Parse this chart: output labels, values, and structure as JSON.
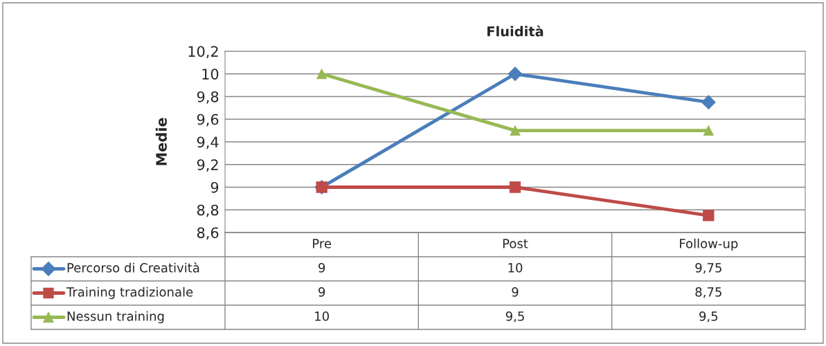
{
  "chart_data": {
    "type": "line",
    "title": "Fluidità",
    "ylabel": "Medie",
    "categories": [
      "Pre",
      "Post",
      "Follow-up"
    ],
    "series": [
      {
        "name": "Percorso di Creatività",
        "color": "#4a7ebb",
        "marker": "diamond",
        "values": [
          9,
          10,
          9.75
        ],
        "value_labels": [
          "9",
          "10",
          "9,75"
        ]
      },
      {
        "name": "Training tradizionale",
        "color": "#be4b48",
        "marker": "square",
        "values": [
          9,
          9,
          8.75
        ],
        "value_labels": [
          "9",
          "9",
          "8,75"
        ]
      },
      {
        "name": "Nessun training",
        "color": "#98b954",
        "marker": "triangle",
        "values": [
          10,
          9.5,
          9.5
        ],
        "value_labels": [
          "10",
          "9,5",
          "9,5"
        ]
      }
    ],
    "ylim": [
      8.6,
      10.2
    ],
    "yticks": [
      {
        "value": 8.6,
        "label": "8,6"
      },
      {
        "value": 8.8,
        "label": "8,8"
      },
      9,
      {
        "value": 9.2,
        "label": "9,2"
      },
      {
        "value": 9.4,
        "label": "9,4"
      },
      {
        "value": 9.6,
        "label": "9,6"
      },
      {
        "value": 9.8,
        "label": "9,8"
      },
      10,
      {
        "value": 10.2,
        "label": "10,2"
      }
    ],
    "grid": "y",
    "legend": "bottom left"
  }
}
